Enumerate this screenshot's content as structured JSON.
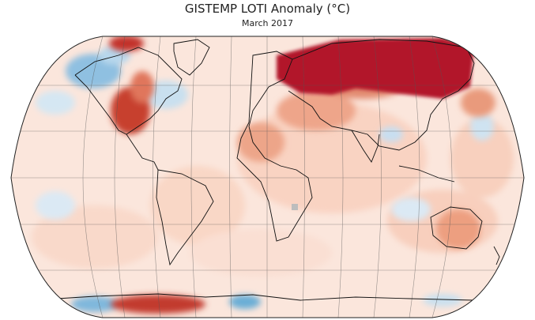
{
  "header": {
    "title": "GISTEMP LOTI Anomaly (°C)",
    "subtitle": "March 2017"
  },
  "map": {
    "projection": "Robinson",
    "variable": "Land-Ocean Temperature Index anomaly",
    "colors": {
      "background": "#fcecE4",
      "strong_warm": "#b2182b",
      "warm": "#e0765c",
      "mild_warm": "#f7c3ac",
      "cool": "#c7dff0",
      "strong_cool": "#6aaed6",
      "missing": "#bdbdbd",
      "coastline": "#111111",
      "graticule": "#555555"
    }
  }
}
